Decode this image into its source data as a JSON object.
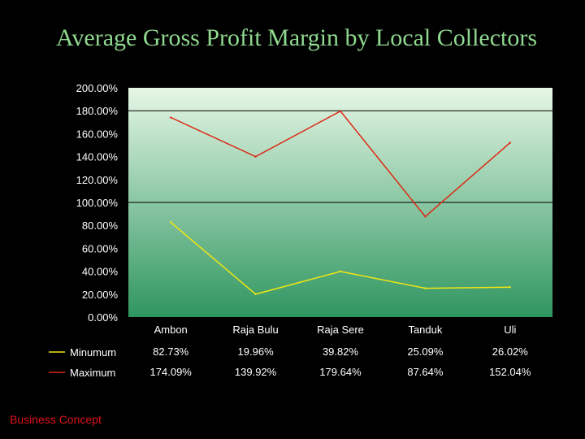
{
  "title": "Average Gross Profit Margin by Local Collectors",
  "footer": "Business Concept",
  "colors": {
    "background": "#000000",
    "title": "#8fd88f",
    "plot_top": "#e6f7e6",
    "plot_bottom": "#2f9660",
    "grid": "#000000",
    "minimum": "#f0e614",
    "maximum": "#dc2814",
    "text": "#ffffff",
    "footer": "#e0141e"
  },
  "chart_data": {
    "type": "line",
    "title": "Average Gross Profit Margin by Local Collectors",
    "xlabel": "",
    "ylabel": "",
    "ylim": [
      0,
      200
    ],
    "y_ticks": [
      0,
      20,
      40,
      60,
      80,
      100,
      120,
      140,
      160,
      180,
      200
    ],
    "y_tick_labels": [
      "0.00%",
      "20.00%",
      "40.00%",
      "60.00%",
      "80.00%",
      "100.00%",
      "120.00%",
      "140.00%",
      "160.00%",
      "180.00%",
      "200.00%"
    ],
    "gridlines": [
      100,
      180
    ],
    "categories": [
      "Ambon",
      "Raja Bulu",
      "Raja Sere",
      "Tanduk",
      "Uli"
    ],
    "series": [
      {
        "name": "Minumum",
        "color": "#f0e614",
        "values": [
          82.73,
          19.96,
          39.82,
          25.09,
          26.02
        ],
        "labels": [
          "82.73%",
          "19.96%",
          "39.82%",
          "25.09%",
          "26.02%"
        ]
      },
      {
        "name": "Maximum",
        "color": "#dc2814",
        "values": [
          174.09,
          139.92,
          179.64,
          87.64,
          152.04
        ],
        "labels": [
          "174.09%",
          "139.92%",
          "179.64%",
          "87.64%",
          "152.04%"
        ]
      }
    ],
    "legend_position": "bottom-left-table"
  }
}
